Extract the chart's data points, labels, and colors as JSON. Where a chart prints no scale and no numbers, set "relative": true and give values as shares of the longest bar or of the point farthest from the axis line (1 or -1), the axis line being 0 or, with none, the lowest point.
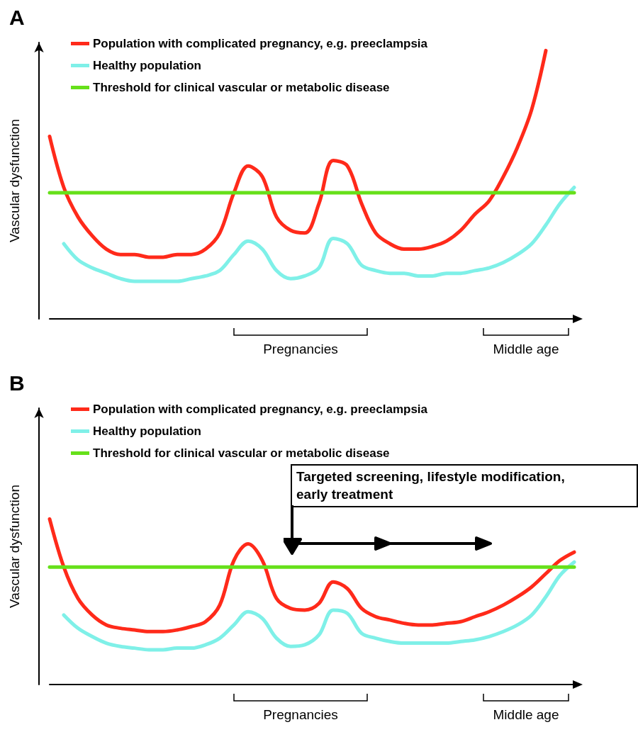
{
  "chart_data": [
    {
      "type": "line",
      "title": "A",
      "ylabel": "Vascular dysfunction",
      "relative": true,
      "legend": "top left",
      "marker": "none",
      "line_style": "solid",
      "categories": [
        null,
        null,
        null,
        null,
        null,
        null,
        null,
        null,
        null,
        null,
        null,
        null,
        null,
        null,
        null,
        null,
        null,
        null,
        null,
        null,
        null,
        null,
        null,
        null,
        null,
        null,
        null,
        null,
        null,
        null,
        null,
        null,
        null,
        null,
        null,
        null,
        null,
        null
      ],
      "series": [
        {
          "name": "Population with complicated pregnancy, e.g. preeclampsia",
          "color": "#ff2a1a",
          "values": [
            0.68,
            0.49,
            0.38,
            0.31,
            0.26,
            0.24,
            0.24,
            0.23,
            0.23,
            0.24,
            0.24,
            0.26,
            0.32,
            0.47,
            0.57,
            0.53,
            0.38,
            0.33,
            0.32,
            0.43,
            0.59,
            0.57,
            0.43,
            0.32,
            0.28,
            0.26,
            0.26,
            0.27,
            0.29,
            0.33,
            0.39,
            0.44,
            0.53,
            0.64,
            0.78,
            1,
            null,
            null
          ]
        },
        {
          "name": "Healthy population",
          "color": "#7ff0e8",
          "values": [
            null,
            0.28,
            0.22,
            0.19,
            0.17,
            0.15,
            0.14,
            0.14,
            0.14,
            0.14,
            0.15,
            0.16,
            0.18,
            0.24,
            0.29,
            0.26,
            0.18,
            0.15,
            0.16,
            0.19,
            0.3,
            0.28,
            0.2,
            0.18,
            0.17,
            0.17,
            0.16,
            0.16,
            0.17,
            0.17,
            0.18,
            0.19,
            0.21,
            0.24,
            0.28,
            0.35,
            0.43,
            0.49
          ]
        },
        {
          "name": "Threshold for clinical vascular or metabolic disease",
          "color": "#66e01a",
          "values": [
            0.47,
            0.47,
            0.47,
            0.47,
            0.47,
            0.47,
            0.47,
            0.47,
            0.47,
            0.47,
            0.47,
            0.47,
            0.47,
            0.47,
            0.47,
            0.47,
            0.47,
            0.47,
            0.47,
            0.47,
            0.47,
            0.47,
            0.47,
            0.47,
            0.47,
            0.47,
            0.47,
            0.47,
            0.47,
            0.47,
            0.47,
            0.47,
            0.47,
            0.47,
            0.47,
            0.47,
            0.47,
            0.47
          ]
        }
      ],
      "annotations": [
        "Pregnancies",
        "Middle age"
      ]
    },
    {
      "type": "line",
      "title": "B",
      "ylabel": "Vascular dysfunction",
      "relative": true,
      "legend": "top left",
      "marker": "none",
      "line_style": "solid",
      "categories": [
        null,
        null,
        null,
        null,
        null,
        null,
        null,
        null,
        null,
        null,
        null,
        null,
        null,
        null,
        null,
        null,
        null,
        null,
        null,
        null,
        null,
        null,
        null,
        null,
        null,
        null,
        null,
        null,
        null,
        null,
        null,
        null,
        null,
        null,
        null,
        null,
        null,
        null
      ],
      "series": [
        {
          "name": "Population with complicated pregnancy, e.g. preeclampsia",
          "color": "#ff2a1a",
          "values": [
            1,
            0.71,
            0.52,
            0.42,
            0.36,
            0.34,
            0.33,
            0.32,
            0.32,
            0.33,
            0.35,
            0.38,
            0.48,
            0.75,
            0.85,
            0.75,
            0.52,
            0.46,
            0.45,
            0.49,
            0.62,
            0.58,
            0.46,
            0.41,
            0.39,
            0.37,
            0.36,
            0.36,
            0.37,
            0.38,
            0.41,
            0.44,
            0.48,
            0.53,
            0.59,
            0.67,
            0.75,
            0.8
          ]
        },
        {
          "name": "Healthy population",
          "color": "#7ff0e8",
          "values": [
            null,
            0.42,
            0.34,
            0.29,
            0.25,
            0.23,
            0.22,
            0.21,
            0.21,
            0.22,
            0.22,
            0.24,
            0.28,
            0.36,
            0.44,
            0.4,
            0.28,
            0.23,
            0.24,
            0.3,
            0.45,
            0.43,
            0.31,
            0.28,
            0.26,
            0.25,
            0.25,
            0.25,
            0.25,
            0.26,
            0.27,
            0.29,
            0.32,
            0.36,
            0.42,
            0.53,
            0.66,
            0.74
          ]
        },
        {
          "name": "Threshold for clinical vascular or metabolic disease",
          "color": "#66e01a",
          "values": [
            0.71,
            0.71,
            0.71,
            0.71,
            0.71,
            0.71,
            0.71,
            0.71,
            0.71,
            0.71,
            0.71,
            0.71,
            0.71,
            0.71,
            0.71,
            0.71,
            0.71,
            0.71,
            0.71,
            0.71,
            0.71,
            0.71,
            0.71,
            0.71,
            0.71,
            0.71,
            0.71,
            0.71,
            0.71,
            0.71,
            0.71,
            0.71,
            0.71,
            0.71,
            0.71,
            0.71,
            0.71,
            0.71
          ]
        }
      ],
      "annotations": [
        "Pregnancies",
        "Middle age",
        "Targeted screening, lifestyle modification, early treatment"
      ]
    }
  ]
}
